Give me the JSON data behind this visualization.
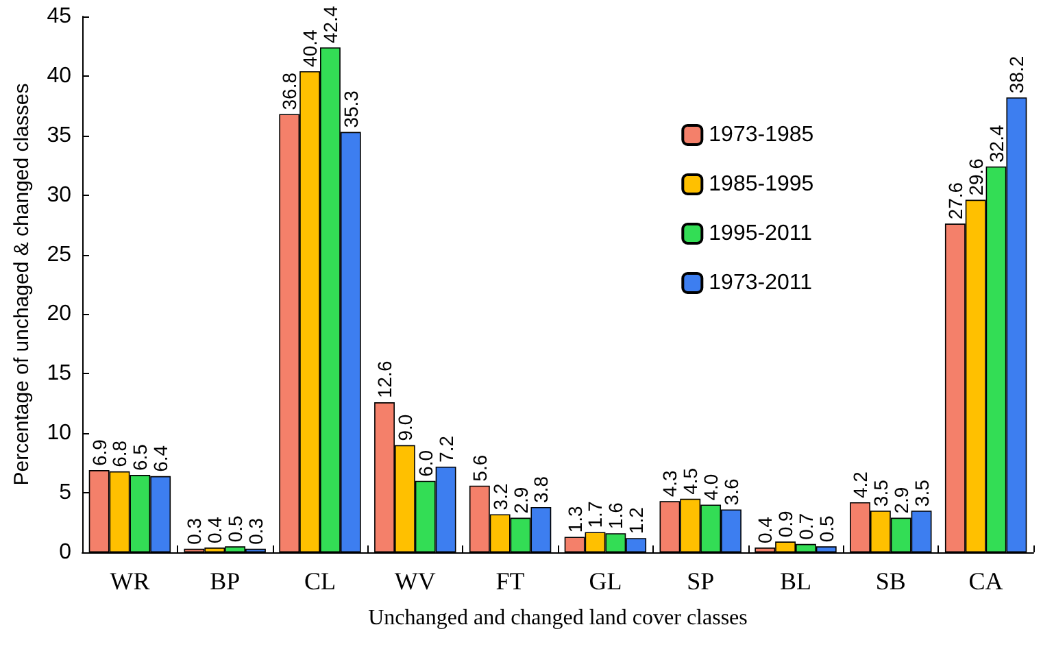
{
  "chart_data": {
    "type": "bar",
    "xlabel": "Unchanged and changed land cover classes",
    "ylabel": "Percentage of unchaged & changed classes",
    "categories": [
      "WR",
      "BP",
      "CL",
      "WV",
      "FT",
      "GL",
      "SP",
      "BL",
      "SB",
      "CA"
    ],
    "series": [
      {
        "name": "1973-1985",
        "color": "#f4806a",
        "values": [
          6.9,
          0.3,
          36.8,
          12.6,
          5.6,
          1.3,
          4.3,
          0.4,
          4.2,
          27.6
        ],
        "value_labels": [
          "6.9",
          "0.3",
          "36.8",
          "12.6",
          "5.6",
          "1.3",
          "4.3",
          "0.4",
          "4.2",
          "27.6"
        ]
      },
      {
        "name": "1985-1995",
        "color": "#ffc000",
        "values": [
          6.8,
          0.4,
          40.4,
          9.0,
          3.2,
          1.7,
          4.5,
          0.9,
          3.5,
          29.6
        ],
        "value_labels": [
          "6.8",
          "0.4",
          "40.4",
          "9.0",
          "3.2",
          "1.7",
          "4.5",
          "0.9",
          "3.5",
          "29.6"
        ]
      },
      {
        "name": "1995-2011",
        "color": "#33dd55",
        "values": [
          6.5,
          0.5,
          42.4,
          6.0,
          2.9,
          1.6,
          4.0,
          0.7,
          2.9,
          32.4
        ],
        "value_labels": [
          "6.5",
          "0.5",
          "42.4",
          "6.0",
          "2.9",
          "1.6",
          "4.0",
          "0.7",
          "2.9",
          "32.4"
        ]
      },
      {
        "name": "1973-2011",
        "color": "#3d7ef0",
        "values": [
          6.4,
          0.3,
          35.3,
          7.2,
          3.8,
          1.2,
          3.6,
          0.5,
          3.5,
          38.2
        ],
        "value_labels": [
          "6.4",
          "0.3",
          "35.3",
          "7.2",
          "3.8",
          "1.2",
          "3.6",
          "0.5",
          "3.5",
          "38.2"
        ]
      }
    ],
    "ylim": [
      0,
      45
    ],
    "yticks": [
      0,
      5,
      10,
      15,
      20,
      25,
      30,
      35,
      40,
      45
    ],
    "grid": false,
    "legend": "right"
  }
}
